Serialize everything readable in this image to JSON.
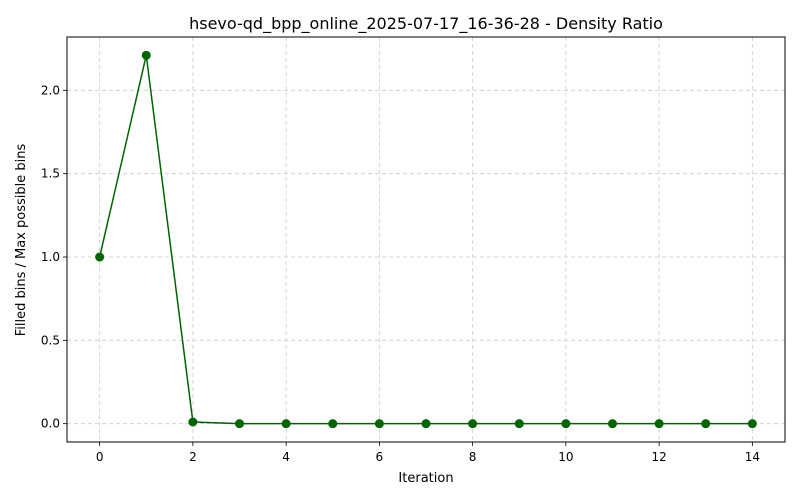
{
  "chart_data": {
    "type": "line",
    "title": "hsevo-qd_bpp_online_2025-07-17_16-36-28 - Density Ratio",
    "xlabel": "Iteration",
    "ylabel": "Filled bins / Max possible bins",
    "x": [
      0,
      1,
      2,
      3,
      4,
      5,
      6,
      7,
      8,
      9,
      10,
      11,
      12,
      13,
      14
    ],
    "series": [
      {
        "values": [
          1.0,
          2.21,
          0.01,
          0.0,
          0.0,
          0.0,
          0.0,
          0.0,
          0.0,
          0.0,
          0.0,
          0.0,
          0.0,
          0.0,
          0.0
        ]
      }
    ],
    "xlim": [
      -0.7,
      14.7
    ],
    "ylim": [
      -0.11,
      2.32
    ],
    "xticks": [
      0,
      2,
      4,
      6,
      8,
      10,
      12,
      14
    ],
    "xtick_labels": [
      "0",
      "2",
      "4",
      "6",
      "8",
      "10",
      "12",
      "14"
    ],
    "yticks": [
      0.0,
      0.5,
      1.0,
      1.5,
      2.0
    ],
    "ytick_labels": [
      "0.0",
      "0.5",
      "1.0",
      "1.5",
      "2.0"
    ],
    "grid": true,
    "grid_style": "dashed",
    "line_color": "#006400",
    "marker": "circle",
    "legend": false
  }
}
